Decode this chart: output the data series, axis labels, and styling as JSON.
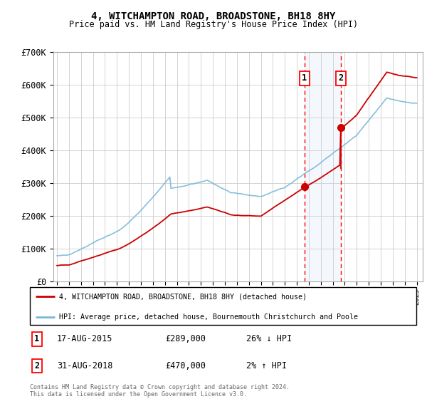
{
  "title": "4, WITCHAMPTON ROAD, BROADSTONE, BH18 8HY",
  "subtitle": "Price paid vs. HM Land Registry's House Price Index (HPI)",
  "legend_line1": "4, WITCHAMPTON ROAD, BROADSTONE, BH18 8HY (detached house)",
  "legend_line2": "HPI: Average price, detached house, Bournemouth Christchurch and Poole",
  "annotation1_label": "1",
  "annotation1_date": "17-AUG-2015",
  "annotation1_price": "£289,000",
  "annotation1_hpi": "26% ↓ HPI",
  "annotation2_label": "2",
  "annotation2_date": "31-AUG-2018",
  "annotation2_price": "£470,000",
  "annotation2_hpi": "2% ↑ HPI",
  "footer": "Contains HM Land Registry data © Crown copyright and database right 2024.\nThis data is licensed under the Open Government Licence v3.0.",
  "ylim": [
    0,
    700000
  ],
  "yticks": [
    0,
    100000,
    200000,
    300000,
    400000,
    500000,
    600000,
    700000
  ],
  "ytick_labels": [
    "£0",
    "£100K",
    "£200K",
    "£300K",
    "£400K",
    "£500K",
    "£600K",
    "£700K"
  ],
  "sale1_year": 2015.63,
  "sale1_price": 289000,
  "sale2_year": 2018.67,
  "sale2_price": 470000,
  "hpi_color": "#7ab8d9",
  "house_color": "#cc0000",
  "shade_color": "#ddeeff",
  "grid_color": "#cccccc",
  "background_color": "#ffffff"
}
